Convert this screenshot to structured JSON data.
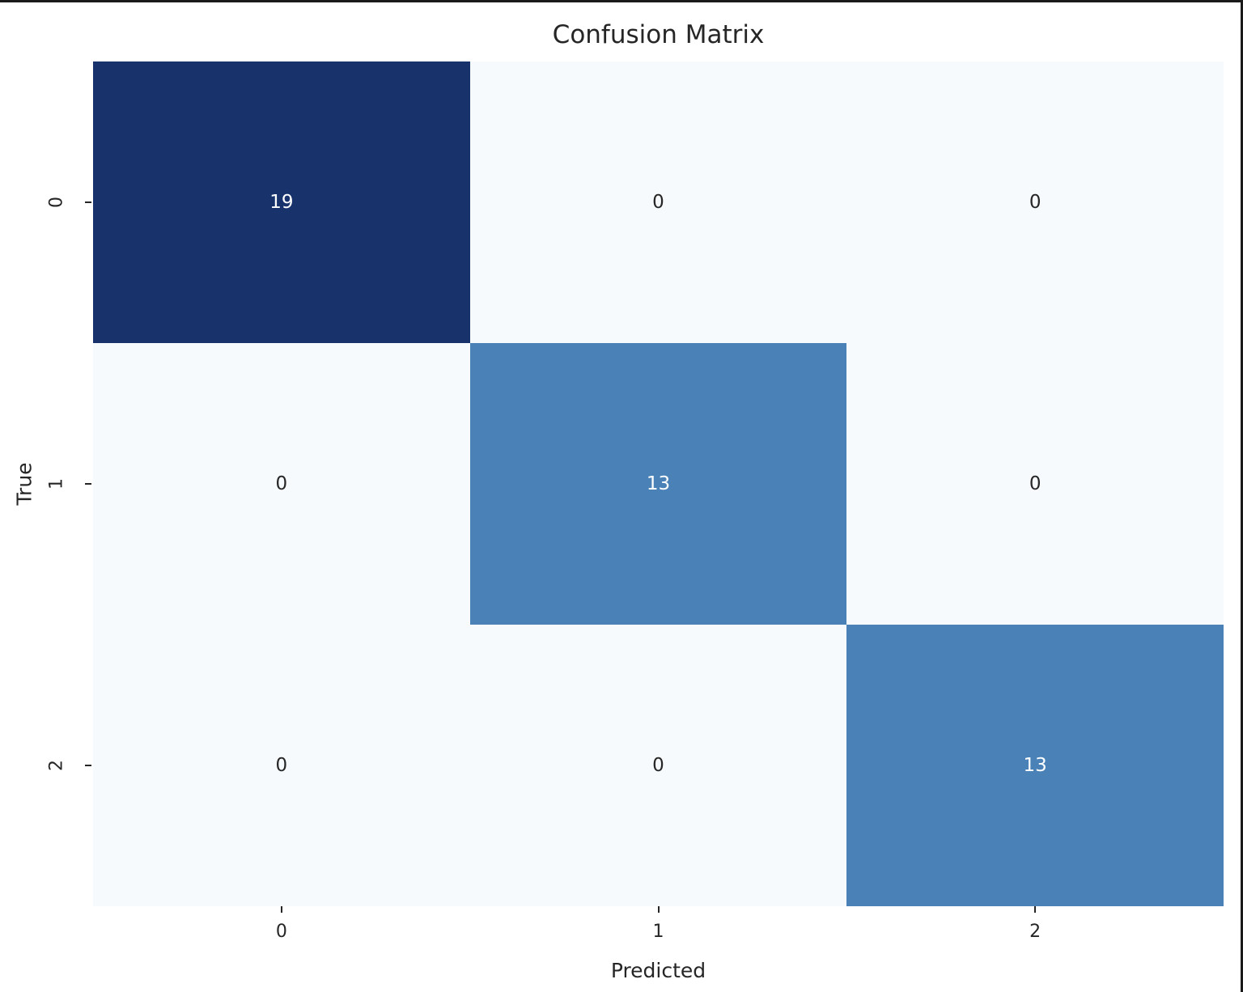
{
  "page": {
    "background_color": "#ffffff",
    "frame_border_color": "#1a1a1a",
    "text_color": "#262626"
  },
  "chart_data": {
    "type": "heatmap",
    "title": "Confusion Matrix",
    "xlabel": "Predicted",
    "ylabel": "True",
    "x_ticklabels": [
      "0",
      "1",
      "2"
    ],
    "y_ticklabels": [
      "0",
      "1",
      "2"
    ],
    "matrix": [
      [
        19,
        0,
        0
      ],
      [
        0,
        13,
        0
      ],
      [
        0,
        0,
        13
      ]
    ],
    "colormap": "Blues",
    "value_range": [
      0,
      19
    ],
    "grid": false,
    "legend": "none",
    "cell_colors": [
      [
        "#18336b",
        "#f6fafd",
        "#f6fafd"
      ],
      [
        "#f6fafd",
        "#4a82b8",
        "#f6fafd"
      ],
      [
        "#f6fafd",
        "#f6fafd",
        "#4a82b8"
      ]
    ],
    "text_colors": [
      [
        "#ffffff",
        "#262626",
        "#262626"
      ],
      [
        "#262626",
        "#ffffff",
        "#262626"
      ],
      [
        "#262626",
        "#262626",
        "#ffffff"
      ]
    ]
  }
}
